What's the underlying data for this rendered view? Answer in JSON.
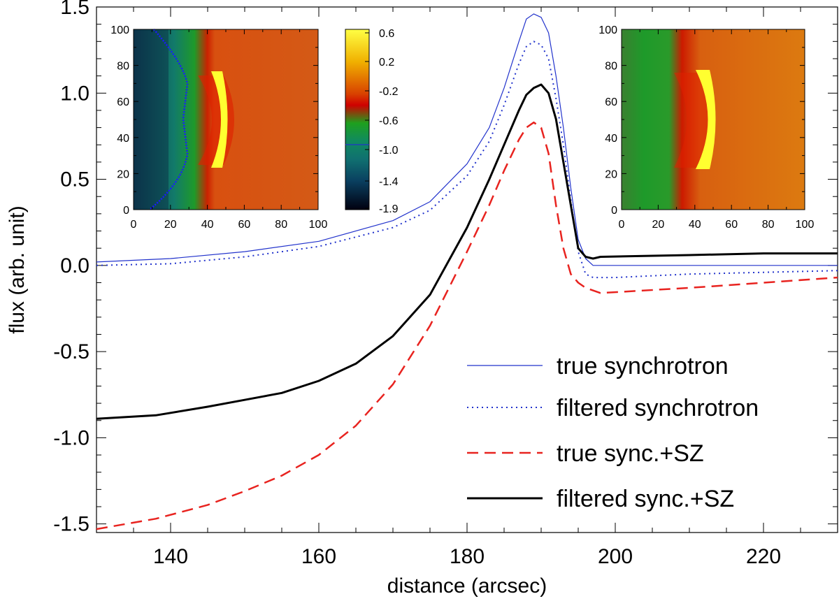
{
  "chart_data": {
    "type": "line",
    "xlabel": "distance (arcsec)",
    "ylabel": "flux (arb. unit)",
    "xlim": [
      130,
      230
    ],
    "ylim": [
      -1.55,
      1.5
    ],
    "xticks": [
      140,
      160,
      180,
      200,
      220
    ],
    "xtick_labels": [
      "140",
      "160",
      "180",
      "200",
      "220"
    ],
    "yticks": [
      -1.5,
      -1.0,
      -0.5,
      0.0,
      0.5,
      1.0,
      1.5
    ],
    "ytick_labels": [
      "-1.5",
      "-1.0",
      "-0.5",
      "0.0",
      "0.5",
      "1.0",
      "1.5"
    ],
    "legend_position": "lower-right",
    "series": [
      {
        "name": "true synchrotron",
        "color": "#2233cc",
        "style": "solid-thin",
        "x": [
          130,
          140,
          150,
          160,
          170,
          175,
          180,
          183,
          185,
          187,
          188,
          189,
          190,
          191,
          192,
          193,
          194,
          195,
          196,
          197,
          200,
          210,
          220,
          230
        ],
        "y": [
          0.02,
          0.04,
          0.08,
          0.14,
          0.26,
          0.37,
          0.59,
          0.8,
          1.03,
          1.3,
          1.43,
          1.46,
          1.44,
          1.35,
          1.1,
          0.8,
          0.45,
          0.15,
          0.04,
          0.0,
          0.0,
          0.0,
          0.0,
          0.0
        ]
      },
      {
        "name": "filtered synchrotron",
        "color": "#2233cc",
        "style": "dotted",
        "x": [
          130,
          140,
          150,
          160,
          170,
          175,
          180,
          183,
          185,
          187,
          188,
          189,
          190,
          191,
          192,
          193,
          194,
          195,
          196,
          197,
          200,
          210,
          220,
          230
        ],
        "y": [
          0.0,
          0.01,
          0.05,
          0.11,
          0.22,
          0.32,
          0.52,
          0.72,
          0.93,
          1.17,
          1.27,
          1.3,
          1.28,
          1.2,
          0.97,
          0.7,
          0.38,
          0.08,
          -0.05,
          -0.07,
          -0.07,
          -0.05,
          -0.04,
          -0.03
        ]
      },
      {
        "name": "true sync.+SZ",
        "color": "#e8231f",
        "style": "dashed",
        "x": [
          130,
          138,
          145,
          150,
          155,
          160,
          165,
          170,
          175,
          180,
          183,
          185,
          187,
          188,
          189,
          190,
          191,
          192,
          193,
          194,
          195,
          196,
          198,
          210,
          220,
          230
        ],
        "y": [
          -1.53,
          -1.47,
          -1.39,
          -1.31,
          -1.22,
          -1.1,
          -0.93,
          -0.69,
          -0.35,
          0.08,
          0.35,
          0.55,
          0.73,
          0.8,
          0.83,
          0.8,
          0.65,
          0.35,
          0.1,
          -0.05,
          -0.1,
          -0.13,
          -0.16,
          -0.13,
          -0.1,
          -0.07
        ]
      },
      {
        "name": "filtered sync.+SZ",
        "color": "#000000",
        "style": "solid-thick",
        "x": [
          130,
          138,
          145,
          150,
          155,
          160,
          165,
          170,
          175,
          180,
          183,
          185,
          187,
          188,
          189,
          190,
          191,
          192,
          193,
          194,
          195,
          196,
          197,
          198,
          210,
          220,
          230
        ],
        "y": [
          -0.89,
          -0.87,
          -0.82,
          -0.78,
          -0.74,
          -0.67,
          -0.57,
          -0.41,
          -0.17,
          0.22,
          0.5,
          0.7,
          0.9,
          0.99,
          1.03,
          1.05,
          1.0,
          0.85,
          0.6,
          0.35,
          0.1,
          0.05,
          0.04,
          0.05,
          0.06,
          0.07,
          0.07
        ]
      }
    ],
    "insets": [
      {
        "name": "left-inset-map",
        "type": "heatmap",
        "xlim": [
          0,
          100
        ],
        "ylim": [
          0,
          100
        ],
        "xticks": [
          "0",
          "20",
          "40",
          "60",
          "80",
          "100"
        ],
        "yticks": [
          "0",
          "20",
          "40",
          "60",
          "80",
          "100"
        ]
      },
      {
        "name": "right-inset-map",
        "type": "heatmap",
        "xlim": [
          0,
          100
        ],
        "ylim": [
          0,
          100
        ],
        "xticks": [
          "0",
          "20",
          "40",
          "60",
          "80",
          "100"
        ],
        "yticks": [
          "0",
          "20",
          "40",
          "60",
          "80",
          "100"
        ]
      }
    ],
    "colorbar": {
      "labels": [
        "0.6",
        "0.2",
        "-0.2",
        "-0.6",
        "-1.0",
        "-1.4",
        "-1.9"
      ]
    }
  }
}
